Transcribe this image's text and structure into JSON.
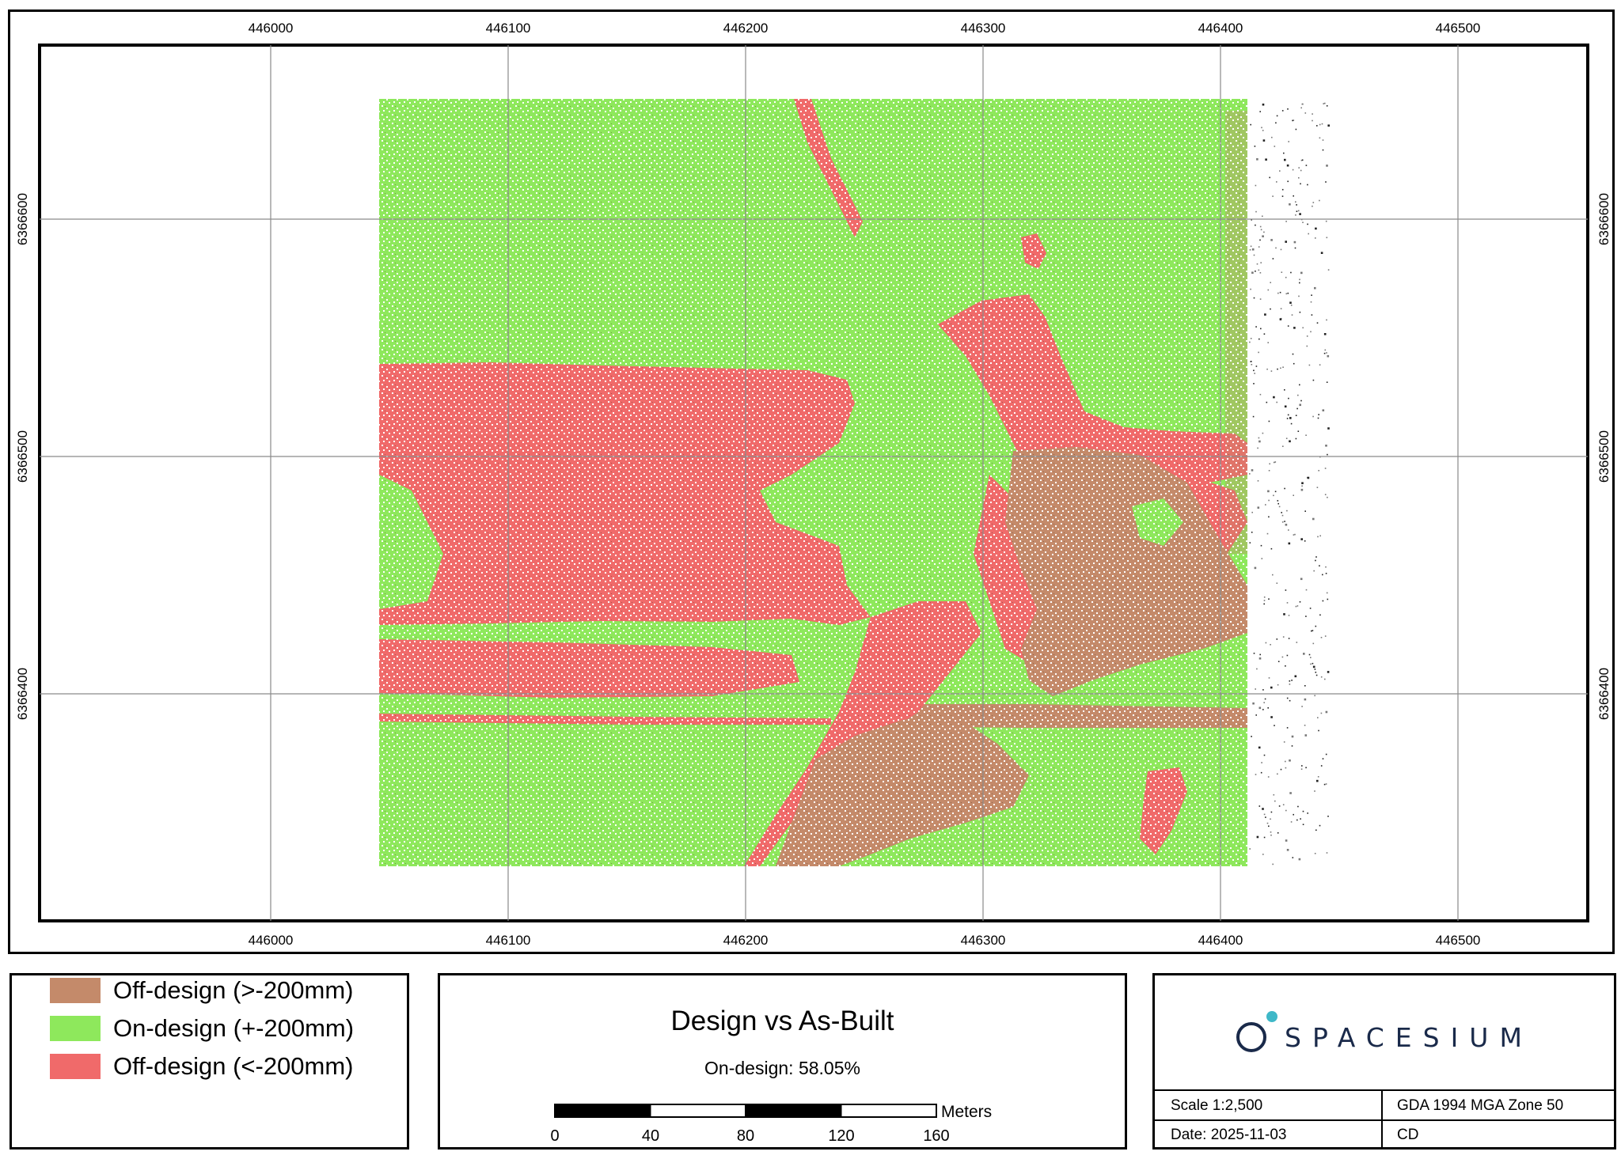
{
  "map": {
    "grid_x_labels": [
      "446000",
      "446100",
      "446200",
      "446300",
      "446400",
      "446500"
    ],
    "grid_y_labels": [
      "6366600",
      "6366500",
      "6366400"
    ],
    "colors": {
      "off_design_high": "#c48a6a",
      "on_design": "#8ee85c",
      "off_design_low": "#f06a6a",
      "grid": "#8a8a8a"
    }
  },
  "legend": {
    "items": [
      {
        "label": "Off-design (>-200mm)",
        "color": "#c48a6a"
      },
      {
        "label": "On-design (+-200mm)",
        "color": "#8ee85c"
      },
      {
        "label": "Off-design (<-200mm)",
        "color": "#f06a6a"
      }
    ]
  },
  "title_block": {
    "title": "Design vs As-Built",
    "subtitle": "On-design: 58.05%",
    "scalebar": {
      "ticks": [
        "0",
        "40",
        "80",
        "120",
        "160"
      ],
      "unit": "Meters"
    }
  },
  "info": {
    "logo_text": "SPACESIUM",
    "logo_accent": "#3fb8c8",
    "scale": "Scale 1:2,500",
    "projection": "GDA 1994 MGA Zone 50",
    "date": "Date: 2025-11-03",
    "author": "CD"
  }
}
